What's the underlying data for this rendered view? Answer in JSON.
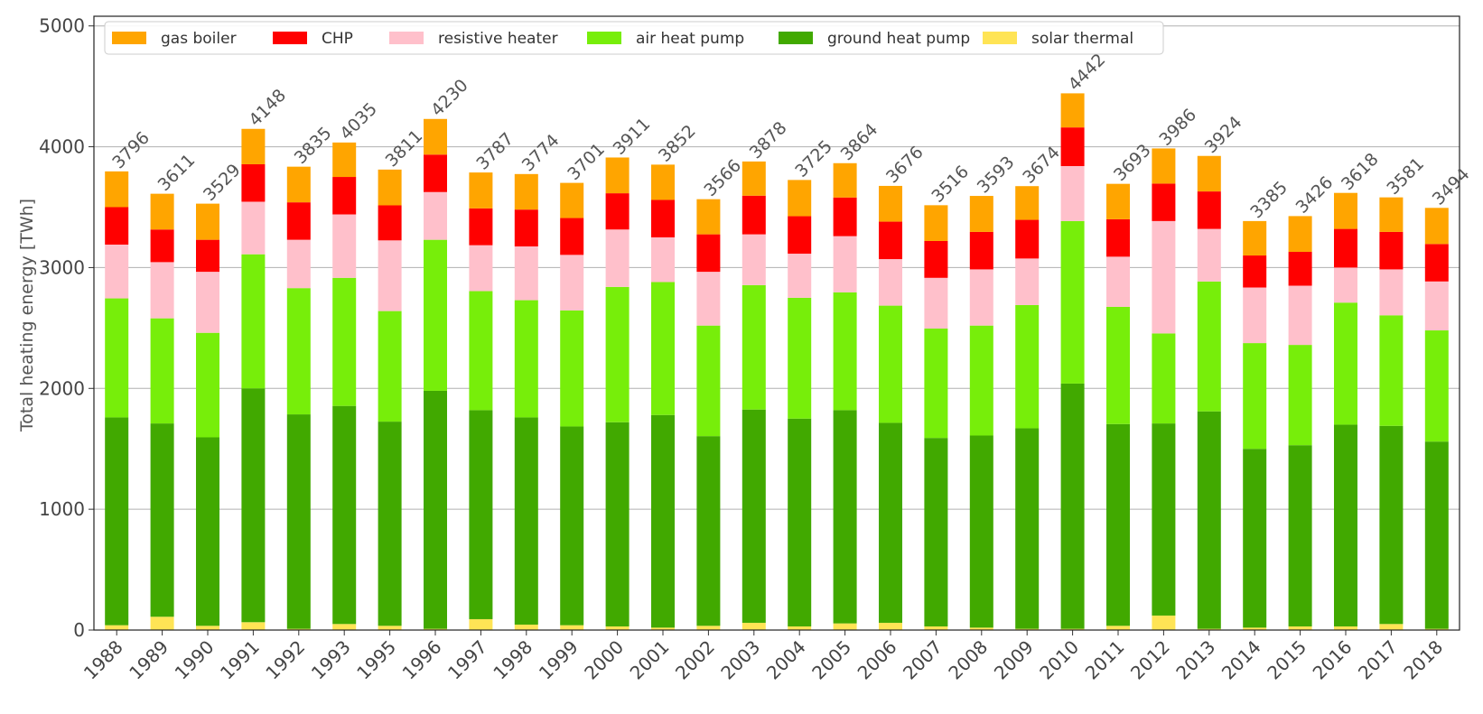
{
  "chart_data": {
    "type": "bar",
    "stacked": true,
    "title": "",
    "xlabel": "",
    "ylabel": "Total heating energy [TWh]",
    "ylim": [
      0,
      5080
    ],
    "yticks": [
      0,
      1000,
      2000,
      3000,
      4000,
      5000
    ],
    "grid": "horizontal",
    "legend_position": "top-left",
    "categories": [
      "1988",
      "1989",
      "1990",
      "1991",
      "1992",
      "1993",
      "1995",
      "1996",
      "1997",
      "1998",
      "1999",
      "2000",
      "2001",
      "2002",
      "2003",
      "2004",
      "2005",
      "2006",
      "2007",
      "2008",
      "2009",
      "2010",
      "2011",
      "2012",
      "2013",
      "2014",
      "2015",
      "2016",
      "2017",
      "2018"
    ],
    "totals": [
      3796,
      3611,
      3529,
      4148,
      3835,
      4035,
      3811,
      4230,
      3787,
      3774,
      3701,
      3911,
      3852,
      3566,
      3878,
      3725,
      3864,
      3676,
      3516,
      3593,
      3674,
      4442,
      3693,
      3986,
      3924,
      3385,
      3426,
      3618,
      3581,
      3494
    ],
    "series": [
      {
        "name": "solar thermal",
        "color": "#ffe455",
        "values": [
          40,
          110,
          35,
          65,
          10,
          50,
          35,
          10,
          90,
          45,
          40,
          30,
          20,
          35,
          60,
          30,
          55,
          60,
          30,
          20,
          10,
          10,
          35,
          120,
          10,
          20,
          30,
          30,
          50,
          10
        ]
      },
      {
        "name": "ground heat pump",
        "color": "#41a900",
        "values": [
          1720,
          1600,
          1560,
          1935,
          1775,
          1805,
          1690,
          1970,
          1730,
          1715,
          1645,
          1690,
          1760,
          1570,
          1765,
          1720,
          1765,
          1655,
          1560,
          1590,
          1660,
          2030,
          1670,
          1590,
          1800,
          1480,
          1500,
          1670,
          1640,
          1550
        ]
      },
      {
        "name": "air heat pump",
        "color": "#77ee0a",
        "values": [
          985,
          870,
          865,
          1110,
          1045,
          1060,
          915,
          1250,
          985,
          970,
          960,
          1120,
          1100,
          915,
          1030,
          1000,
          975,
          970,
          905,
          910,
          1020,
          1345,
          970,
          745,
          1075,
          875,
          830,
          1010,
          915,
          920
        ]
      },
      {
        "name": "resistive heater",
        "color": "#ffc0cb",
        "values": [
          445,
          465,
          505,
          435,
          400,
          525,
          585,
          395,
          380,
          445,
          460,
          475,
          370,
          445,
          420,
          365,
          465,
          385,
          420,
          465,
          385,
          455,
          415,
          930,
          435,
          460,
          490,
          290,
          380,
          405
        ]
      },
      {
        "name": "CHP",
        "color": "#ff0000",
        "values": [
          310,
          270,
          265,
          310,
          310,
          310,
          290,
          310,
          305,
          305,
          305,
          300,
          310,
          310,
          320,
          310,
          320,
          310,
          305,
          310,
          320,
          320,
          310,
          310,
          310,
          265,
          280,
          320,
          310,
          310
        ]
      },
      {
        "name": "gas boiler",
        "color": "#ffa500",
        "values": [
          296,
          296,
          299,
          293,
          295,
          285,
          296,
          295,
          297,
          294,
          291,
          296,
          292,
          291,
          283,
          300,
          284,
          296,
          296,
          298,
          279,
          282,
          293,
          291,
          294,
          285,
          296,
          298,
          286,
          299
        ]
      }
    ]
  }
}
